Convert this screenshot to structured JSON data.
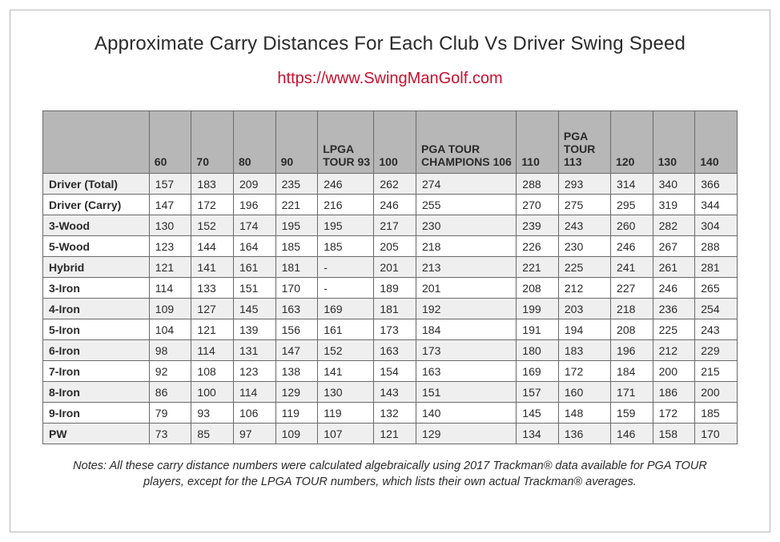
{
  "title": "Approximate Carry Distances For Each Club Vs Driver Swing Speed",
  "url": "https://www.SwingManGolf.com",
  "url_color": "#c8102e",
  "header_bg": "#b7b7b7",
  "border_color": "#6a6a6a",
  "stripe_color": "#efefef",
  "text_color": "#2a2a2a",
  "columns": [
    {
      "key": "club",
      "label": "",
      "class": "col-club"
    },
    {
      "key": "c60",
      "label": "60",
      "class": "col-n"
    },
    {
      "key": "c70",
      "label": "70",
      "class": "col-n"
    },
    {
      "key": "c80",
      "label": "80",
      "class": "col-n"
    },
    {
      "key": "c90",
      "label": "90",
      "class": "col-n"
    },
    {
      "key": "c93",
      "label": "LPGA TOUR 93",
      "class": "col-lpga"
    },
    {
      "key": "c100",
      "label": "100",
      "class": "col-n"
    },
    {
      "key": "c106",
      "label": "PGA TOUR CHAMPIONS 106",
      "class": "col-pga"
    },
    {
      "key": "c110",
      "label": "110",
      "class": "col-n"
    },
    {
      "key": "c113",
      "label": "PGA TOUR 113",
      "class": "col-pgat"
    },
    {
      "key": "c120",
      "label": "120",
      "class": "col-n"
    },
    {
      "key": "c130",
      "label": "130",
      "class": "col-n"
    },
    {
      "key": "c140",
      "label": "140",
      "class": "col-n"
    }
  ],
  "rows": [
    {
      "club": "Driver (Total)",
      "c60": "157",
      "c70": "183",
      "c80": "209",
      "c90": "235",
      "c93": "246",
      "c100": "262",
      "c106": "274",
      "c110": "288",
      "c113": "293",
      "c120": "314",
      "c130": "340",
      "c140": "366"
    },
    {
      "club": "Driver (Carry)",
      "c60": "147",
      "c70": "172",
      "c80": "196",
      "c90": "221",
      "c93": "216",
      "c100": "246",
      "c106": "255",
      "c110": "270",
      "c113": "275",
      "c120": "295",
      "c130": "319",
      "c140": "344"
    },
    {
      "club": "3-Wood",
      "c60": "130",
      "c70": "152",
      "c80": "174",
      "c90": "195",
      "c93": "195",
      "c100": "217",
      "c106": "230",
      "c110": "239",
      "c113": "243",
      "c120": "260",
      "c130": "282",
      "c140": "304"
    },
    {
      "club": "5-Wood",
      "c60": "123",
      "c70": "144",
      "c80": "164",
      "c90": "185",
      "c93": "185",
      "c100": "205",
      "c106": "218",
      "c110": "226",
      "c113": "230",
      "c120": "246",
      "c130": "267",
      "c140": "288"
    },
    {
      "club": "Hybrid",
      "c60": "121",
      "c70": "141",
      "c80": "161",
      "c90": "181",
      "c93": "-",
      "c100": "201",
      "c106": "213",
      "c110": "221",
      "c113": "225",
      "c120": "241",
      "c130": "261",
      "c140": "281"
    },
    {
      "club": "3-Iron",
      "c60": "114",
      "c70": "133",
      "c80": "151",
      "c90": "170",
      "c93": "-",
      "c100": "189",
      "c106": "201",
      "c110": "208",
      "c113": "212",
      "c120": "227",
      "c130": "246",
      "c140": "265"
    },
    {
      "club": "4-Iron",
      "c60": "109",
      "c70": "127",
      "c80": "145",
      "c90": "163",
      "c93": "169",
      "c100": "181",
      "c106": "192",
      "c110": "199",
      "c113": "203",
      "c120": "218",
      "c130": "236",
      "c140": "254"
    },
    {
      "club": "5-Iron",
      "c60": "104",
      "c70": "121",
      "c80": "139",
      "c90": "156",
      "c93": "161",
      "c100": "173",
      "c106": "184",
      "c110": "191",
      "c113": "194",
      "c120": "208",
      "c130": "225",
      "c140": "243"
    },
    {
      "club": "6-Iron",
      "c60": "98",
      "c70": "114",
      "c80": "131",
      "c90": "147",
      "c93": "152",
      "c100": "163",
      "c106": "173",
      "c110": "180",
      "c113": "183",
      "c120": "196",
      "c130": "212",
      "c140": "229"
    },
    {
      "club": "7-Iron",
      "c60": "92",
      "c70": "108",
      "c80": "123",
      "c90": "138",
      "c93": "141",
      "c100": "154",
      "c106": "163",
      "c110": "169",
      "c113": "172",
      "c120": "184",
      "c130": "200",
      "c140": "215"
    },
    {
      "club": "8-Iron",
      "c60": "86",
      "c70": "100",
      "c80": "114",
      "c90": "129",
      "c93": "130",
      "c100": "143",
      "c106": "151",
      "c110": "157",
      "c113": "160",
      "c120": "171",
      "c130": "186",
      "c140": "200"
    },
    {
      "club": "9-Iron",
      "c60": "79",
      "c70": "93",
      "c80": "106",
      "c90": "119",
      "c93": "119",
      "c100": "132",
      "c106": "140",
      "c110": "145",
      "c113": "148",
      "c120": "159",
      "c130": "172",
      "c140": "185"
    },
    {
      "club": "PW",
      "c60": "73",
      "c70": "85",
      "c80": "97",
      "c90": "109",
      "c93": "107",
      "c100": "121",
      "c106": "129",
      "c110": "134",
      "c113": "136",
      "c120": "146",
      "c130": "158",
      "c140": "170"
    }
  ],
  "notes": "Notes: All these carry distance numbers were calculated algebraically using 2017 Trackman® data available for PGA TOUR players, except for the LPGA TOUR numbers, which lists their own actual Trackman® averages."
}
